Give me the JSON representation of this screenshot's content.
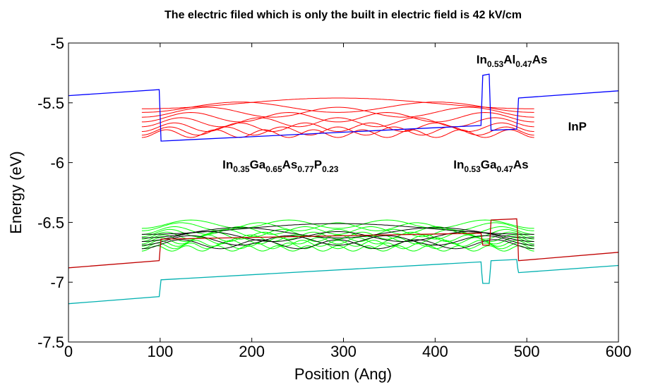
{
  "chart_data": {
    "type": "line",
    "title": "The electric filed which is only the built in electric field is 42 kV/cm",
    "xlabel": "Position (Ang)",
    "ylabel": "Energy (eV)",
    "xlim": [
      0,
      600
    ],
    "ylim": [
      -7.5,
      -5
    ],
    "xticks": [
      "0",
      "100",
      "200",
      "300",
      "400",
      "500",
      "600"
    ],
    "yticks": [
      "-5",
      "-5.5",
      "-6",
      "-6.5",
      "-7",
      "-7.5"
    ],
    "grid": false,
    "legend": "none",
    "annotations": [
      {
        "id": "inalas",
        "parts": [
          [
            "In",
            ""
          ],
          [
            "0.53",
            "sub"
          ],
          [
            "Al",
            ""
          ],
          [
            "0.47",
            "sub"
          ],
          [
            "As",
            ""
          ]
        ],
        "x": 445,
        "y": -5.17
      },
      {
        "id": "inp",
        "parts": [
          [
            "InP",
            ""
          ]
        ],
        "x": 545,
        "y": -5.73
      },
      {
        "id": "ingaasp",
        "parts": [
          [
            "In",
            ""
          ],
          [
            "0.35",
            "sub"
          ],
          [
            "Ga",
            ""
          ],
          [
            "0.65",
            "sub"
          ],
          [
            "As",
            ""
          ],
          [
            "0.77",
            "sub"
          ],
          [
            "P",
            ""
          ],
          [
            "0.23",
            "sub"
          ]
        ],
        "x": 168,
        "y": -6.05
      },
      {
        "id": "ingaas",
        "parts": [
          [
            "In",
            ""
          ],
          [
            "0.53",
            "sub"
          ],
          [
            "Ga",
            ""
          ],
          [
            "0.47",
            "sub"
          ],
          [
            "As",
            ""
          ]
        ],
        "x": 420,
        "y": -6.05
      }
    ],
    "series": [
      {
        "role": "conduction-band",
        "color": "#0000ff",
        "x": [
          0,
          99,
          100,
          101,
          450,
          451,
          452,
          459,
          460,
          461,
          489,
          490,
          491,
          600
        ],
        "y": [
          -5.44,
          -5.39,
          -5.6,
          -5.82,
          -5.69,
          -5.48,
          -5.27,
          -5.26,
          -5.5,
          -5.73,
          -5.72,
          -5.6,
          -5.46,
          -5.4
        ]
      },
      {
        "role": "heavy-hole-band",
        "color": "#c00000",
        "x": [
          0,
          99,
          100,
          101,
          450,
          451,
          452,
          459,
          460,
          461,
          489,
          490,
          491,
          600
        ],
        "y": [
          -6.88,
          -6.82,
          -6.72,
          -6.64,
          -6.59,
          -6.64,
          -6.69,
          -6.69,
          -6.62,
          -6.48,
          -6.47,
          -6.6,
          -6.82,
          -6.75
        ]
      },
      {
        "role": "light-hole-band",
        "color": "#00b0b0",
        "x": [
          0,
          99,
          100,
          101,
          450,
          451,
          452,
          459,
          460,
          461,
          489,
          490,
          491,
          600
        ],
        "y": [
          -7.18,
          -7.12,
          -7.05,
          -6.98,
          -6.83,
          -6.93,
          -7.01,
          -7.01,
          -6.92,
          -6.82,
          -6.81,
          -6.88,
          -6.92,
          -6.86
        ]
      }
    ],
    "wavefunction_groups": [
      {
        "role": "electron-states",
        "color": "#ff0000",
        "x_range": [
          80,
          508
        ],
        "levels": [
          -5.55,
          -5.58,
          -5.62,
          -5.66,
          -5.7,
          -5.74,
          -5.77,
          -5.79
        ],
        "modes": [
          1,
          2,
          3,
          4,
          5,
          6,
          7,
          8
        ],
        "amplitude": 0.09
      },
      {
        "role": "hole-states-a",
        "color": "#00ff00",
        "x_range": [
          80,
          508
        ],
        "levels": [
          -6.55,
          -6.57,
          -6.6,
          -6.62,
          -6.64,
          -6.66,
          -6.68,
          -6.7,
          -6.72,
          -6.74
        ],
        "modes": [
          4,
          5,
          6,
          7,
          8,
          9,
          10,
          11,
          12,
          13
        ],
        "amplitude": 0.07
      },
      {
        "role": "hole-states-b",
        "color": "#000000",
        "x_range": [
          80,
          508
        ],
        "levels": [
          -6.6,
          -6.63,
          -6.66,
          -6.69,
          -6.72
        ],
        "modes": [
          1,
          2,
          3,
          4,
          5
        ],
        "amplitude": 0.09
      }
    ]
  }
}
